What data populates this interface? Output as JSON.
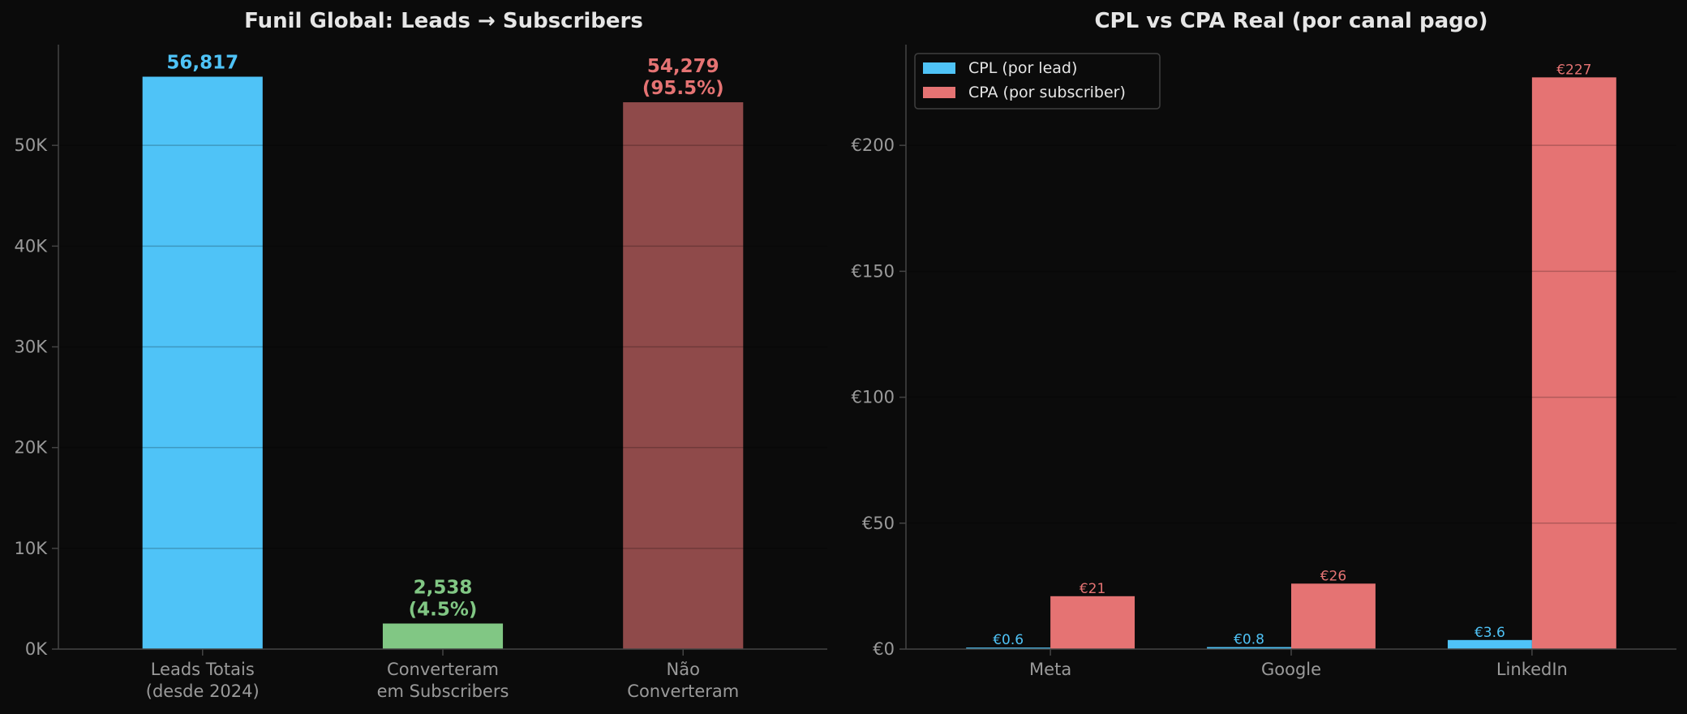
{
  "theme": {
    "background": "#0b0b0b",
    "title_color": "#e6e6e6",
    "tick_color": "#9a9a9a",
    "grid_color": "#3a3a3a",
    "spine_color": "#444444",
    "legend_text_color": "#e6e6e6"
  },
  "chart_data": [
    {
      "type": "bar",
      "title": "Funil Global: Leads → Subscribers",
      "xlabel": "",
      "ylabel": "",
      "ylim": [
        0,
        60000
      ],
      "y_ticks": [
        0,
        10000,
        20000,
        30000,
        40000,
        50000
      ],
      "y_tick_labels": [
        "0K",
        "10K",
        "20K",
        "30K",
        "40K",
        "50K"
      ],
      "grid": true,
      "categories": [
        [
          "Leads Totais",
          "(desde 2024)"
        ],
        [
          "Converteram",
          "em Subscribers"
        ],
        [
          "Não",
          "Converteram"
        ]
      ],
      "values": [
        56817,
        2538,
        54279
      ],
      "colors": [
        "#4fc3f7",
        "#81c784",
        "#8f4a4a"
      ],
      "label_colors": [
        "#4fc3f7",
        "#81c784",
        "#e57373"
      ],
      "data_labels": [
        [
          "56,817"
        ],
        [
          "2,538",
          "(4.5%)"
        ],
        [
          "54,279",
          "(95.5%)"
        ]
      ]
    },
    {
      "type": "bar",
      "title": "CPL vs CPA Real (por canal pago)",
      "xlabel": "",
      "ylabel": "",
      "ylim": [
        0,
        240
      ],
      "y_ticks": [
        0,
        50,
        100,
        150,
        200
      ],
      "y_tick_labels": [
        "€0",
        "€50",
        "€100",
        "€150",
        "€200"
      ],
      "grid": true,
      "legend_position": "top-left",
      "categories": [
        "Meta",
        "Google",
        "LinkedIn"
      ],
      "series": [
        {
          "name": "CPL (por lead)",
          "color": "#4fc3f7",
          "values": [
            0.6,
            0.8,
            3.6
          ],
          "data_labels": [
            "€0.6",
            "€0.8",
            "€3.6"
          ]
        },
        {
          "name": "CPA (por subscriber)",
          "color": "#e57373",
          "values": [
            21,
            26,
            227
          ],
          "data_labels": [
            "€21",
            "€26",
            "€227"
          ]
        }
      ]
    }
  ]
}
